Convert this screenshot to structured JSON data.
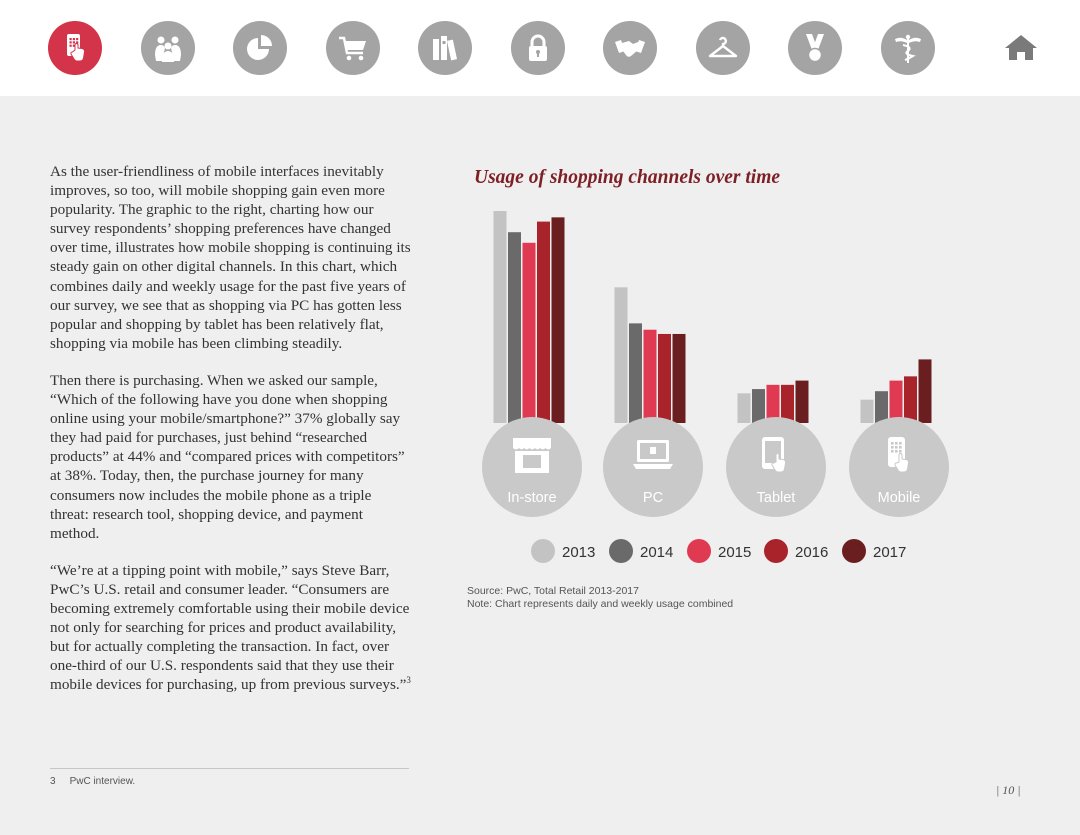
{
  "nav": {
    "items": [
      {
        "name": "mobile-shopping",
        "icon": "mobile-touch-icon",
        "active": true
      },
      {
        "name": "people",
        "icon": "people-icon",
        "active": false
      },
      {
        "name": "pie-chart",
        "icon": "pie-chart-icon",
        "active": false
      },
      {
        "name": "cart",
        "icon": "shopping-cart-icon",
        "active": false
      },
      {
        "name": "books",
        "icon": "books-icon",
        "active": false
      },
      {
        "name": "lock",
        "icon": "lock-icon",
        "active": false
      },
      {
        "name": "handshake",
        "icon": "handshake-icon",
        "active": false
      },
      {
        "name": "hanger",
        "icon": "hanger-icon",
        "active": false
      },
      {
        "name": "medal",
        "icon": "medal-icon",
        "active": false
      },
      {
        "name": "caduceus",
        "icon": "caduceus-icon",
        "active": false
      }
    ],
    "home_icon": "home-icon"
  },
  "body": {
    "p1": "As the user-friendliness of mobile interfaces inevitably improves, so too, will mobile shopping gain even more popularity. The graphic to the right, charting how our survey respondents’ shopping preferences have changed over time, illustrates how mobile shopping is continuing its steady gain on other digital channels. In this chart, which combines daily and weekly usage for the past five years of our survey, we see that as shopping via PC has gotten less popular and shopping by tablet has been relatively flat, shopping via mobile has been climbing steadily.",
    "p2": "Then there is purchasing. When we asked our sample, “Which of the following have you done when shopping online using your mobile/smartphone?” 37% globally say they had paid for purchases, just behind “researched products” at 44% and “compared prices with competitors” at 38%. Today, then, the purchase journey for many consumers now includes the mobile phone as a triple threat: research tool, shopping device, and payment method.",
    "p3": "“We’re at a tipping point with mobile,” says Steve Barr, PwC’s U.S. retail and consumer leader. “Consumers are becoming extremely comfortable using their mobile device not only for searching for prices and product availability, but for actually completing the transaction. In fact, over one-third of our U.S. respondents said that they use their mobile devices for purchasing, up from previous surveys.”",
    "p3_ref": "3"
  },
  "footnote": {
    "number": "3",
    "text": "PwC interview."
  },
  "page_number": "| 10 |",
  "chart_data": {
    "type": "bar",
    "title": "Usage of shopping channels over time",
    "categories": [
      "In-store",
      "PC",
      "Tablet",
      "Mobile"
    ],
    "category_icons": [
      "store-icon",
      "laptop-icon",
      "tablet-icon",
      "mobile-icon"
    ],
    "series": [
      {
        "name": "2013",
        "color": "#c3c3c3",
        "values": [
          100,
          64,
          14,
          11
        ]
      },
      {
        "name": "2014",
        "color": "#6a6a6a",
        "values": [
          90,
          47,
          16,
          15
        ]
      },
      {
        "name": "2015",
        "color": "#e03a52",
        "values": [
          85,
          44,
          18,
          20
        ]
      },
      {
        "name": "2016",
        "color": "#a8232a",
        "values": [
          95,
          42,
          18,
          22
        ]
      },
      {
        "name": "2017",
        "color": "#6b1e20",
        "values": [
          97,
          42,
          20,
          30
        ]
      }
    ],
    "ylim": [
      0,
      100
    ],
    "xlabel": "",
    "ylabel": "",
    "source": "Source: PwC, Total Retail 2013-2017",
    "note": "Note: Chart represents daily and weekly usage combined"
  }
}
